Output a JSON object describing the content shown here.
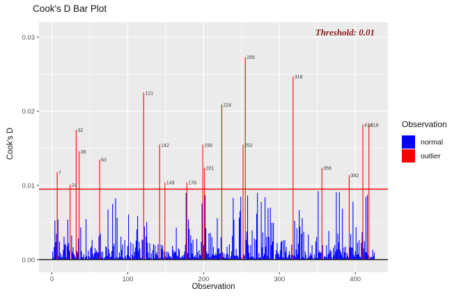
{
  "chart_data": {
    "type": "bar",
    "title": "Cook's D Bar Plot",
    "xlabel": "Observation",
    "ylabel": "Cook's D",
    "xlim": [
      -17,
      443
    ],
    "ylim": [
      -0.0017,
      0.032
    ],
    "x_ticks": [
      {
        "v": 0,
        "label": "0"
      },
      {
        "v": 100,
        "label": "100"
      },
      {
        "v": 200,
        "label": "200"
      },
      {
        "v": 300,
        "label": "300"
      },
      {
        "v": 400,
        "label": "400"
      }
    ],
    "x_minor": [
      50,
      150,
      250,
      350
    ],
    "y_ticks": [
      {
        "v": 0.0,
        "label": "0.00"
      },
      {
        "v": 0.01,
        "label": "0.01"
      },
      {
        "v": 0.02,
        "label": "0.02"
      },
      {
        "v": 0.03,
        "label": "0.03"
      }
    ],
    "y_minor": [
      0.005,
      0.015,
      0.025
    ],
    "grid": true,
    "panel_bg": "#EBEBEB",
    "grid_color": "#FFFFFF",
    "axis_text_color": "#4D4D4D",
    "tick_mark_color": "#333333",
    "zero_line": {
      "value": 0,
      "color": "#111111"
    },
    "threshold_line": {
      "value": 0.0095,
      "color": "#EE1111"
    },
    "annotation": {
      "text": "Threshold: 0.01",
      "color": "#8B1A1A"
    },
    "legend": {
      "title": "Observation",
      "position": "right",
      "entries": [
        {
          "label": "normal",
          "color": "#0000FF"
        },
        {
          "label": "outlier",
          "color": "#FF0000"
        }
      ]
    },
    "outliers": {
      "name": "outlier",
      "color": "#FF0000",
      "label_color": "#3A3A3A",
      "points": [
        {
          "x": 7,
          "y": 0.0118
        },
        {
          "x": 24,
          "y": 0.0101
        },
        {
          "x": 32,
          "y": 0.0175
        },
        {
          "x": 36,
          "y": 0.0146
        },
        {
          "x": 63,
          "y": 0.0135
        },
        {
          "x": 121,
          "y": 0.0225
        },
        {
          "x": 142,
          "y": 0.0155
        },
        {
          "x": 149,
          "y": 0.0104
        },
        {
          "x": 178,
          "y": 0.0104
        },
        {
          "x": 199,
          "y": 0.0155
        },
        {
          "x": 201,
          "y": 0.0124
        },
        {
          "x": 224,
          "y": 0.0209
        },
        {
          "x": 252,
          "y": 0.0155
        },
        {
          "x": 255,
          "y": 0.0273
        },
        {
          "x": 318,
          "y": 0.0247
        },
        {
          "x": 356,
          "y": 0.0124
        },
        {
          "x": 392,
          "y": 0.0114
        },
        {
          "x": 410,
          "y": 0.0182
        },
        {
          "x": 418,
          "y": 0.0182
        }
      ]
    },
    "normal_bars": {
      "name": "normal",
      "color": "#0000FF",
      "count": 425,
      "seed": 20240414,
      "zero_chance": 0.12,
      "base": 0.0002,
      "exp_scale": 0.0014,
      "spike_chance": 0.1,
      "spike_min": 0.004,
      "max": 0.0093,
      "note": "all normal bars lie below the threshold line; individual heights are not legible in the screenshot and are regenerated deterministically from the seed"
    }
  }
}
